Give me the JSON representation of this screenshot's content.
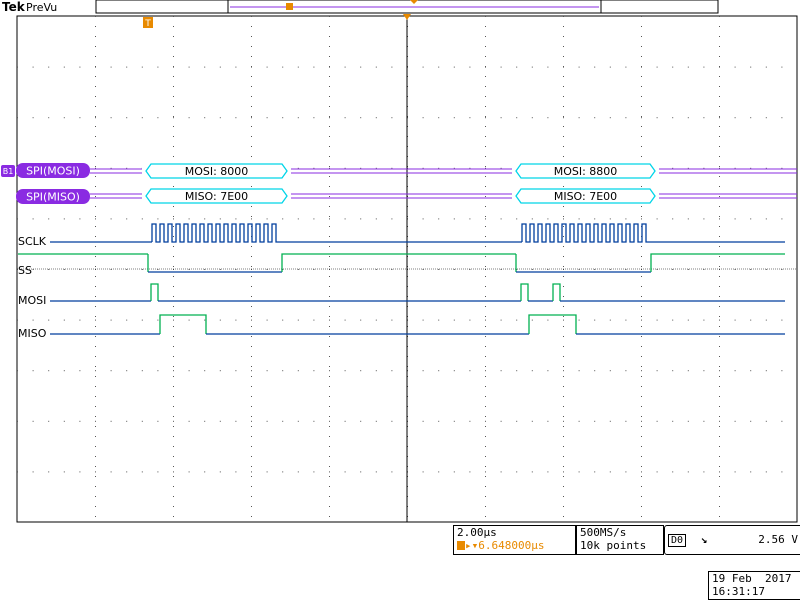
{
  "header": {
    "brand": "Tek",
    "state": "PreVu"
  },
  "bus": {
    "marker": "B1",
    "rows": [
      {
        "label": "SPI(MOSI)",
        "packets": [
          "MOSI: 8000",
          "MOSI: 8800"
        ]
      },
      {
        "label": "SPI(MISO)",
        "packets": [
          "MISO: 7E00",
          "MISO: 7E00"
        ]
      }
    ]
  },
  "channels": [
    {
      "label": "SCLK"
    },
    {
      "label": "SS"
    },
    {
      "label": "MOSI"
    },
    {
      "label": "MISO"
    }
  ],
  "trigger_marker": "T",
  "readouts": {
    "timebase": "2.00µs",
    "trigger_position": "6.648000µs",
    "sample_rate": "500MS/s",
    "record_length": "10k points",
    "trigger_source": "D0",
    "trigger_slope": "falling-edge-icon",
    "trigger_level": "2.56 V"
  },
  "datetime": {
    "date": "19 Feb  2017",
    "time": "16:31:17"
  },
  "colors": {
    "bus": "#8a2be2",
    "digital": "#003f9e",
    "packet": "#00d5e8",
    "green_edge": "#00b050"
  }
}
